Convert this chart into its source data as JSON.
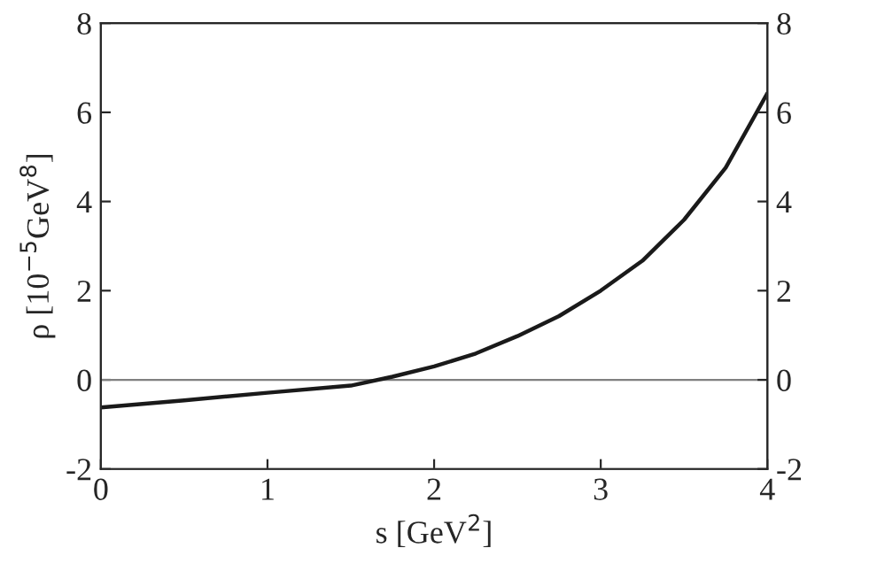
{
  "chart_data": {
    "type": "line",
    "xlabel": "s [GeV$^{2}$]",
    "ylabel": "ρ [10$^{−5}$GeV$^{8}$]",
    "series": [
      {
        "color": "#1a1a1a",
        "x": [
          0,
          0.5,
          1,
          1.5,
          1.75,
          2,
          2.25,
          2.5,
          2.75,
          3,
          3.25,
          3.5,
          3.75,
          4
        ],
        "values": [
          -0.62,
          -0.46,
          -0.29,
          -0.13,
          0.07,
          0.3,
          0.59,
          0.98,
          1.43,
          2.0,
          2.67,
          3.59,
          4.76,
          6.43
        ]
      }
    ],
    "xlim": [
      0,
      4
    ],
    "xticks": [
      0,
      1,
      2,
      3,
      4
    ],
    "ylim": [
      -2,
      8
    ],
    "yticks": [
      -2,
      0,
      2,
      4,
      6,
      8
    ],
    "y2lim": [
      -2,
      8
    ],
    "y2ticks": [
      -2,
      0,
      2,
      4,
      6,
      8
    ],
    "ref_lines": [
      {
        "axis": "y",
        "value": 0,
        "color": "#808080",
        "line_style": "solid"
      }
    ],
    "grid": false,
    "legend": false,
    "marker": "none",
    "line_style": "solid"
  }
}
